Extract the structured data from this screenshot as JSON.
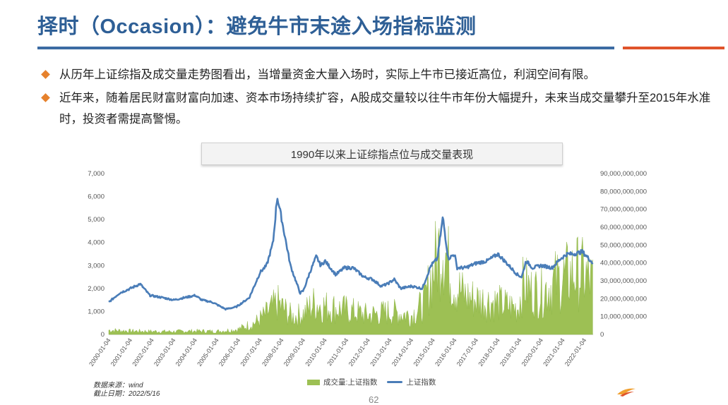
{
  "slide": {
    "title": "择时（Occasion）：避免牛市末途入场指标监测",
    "bullets": [
      "从历年上证综指及成交量走势图看出，当增量资金大量入场时，实际上牛市已接近高位，利润空间有限。",
      "近年来，随着居民财富财富向加速、资本市场持续扩容，A股成交量较以往牛市年份大幅提升，未来当成交量攀升至2015年水准时，投资者需提高警惕。"
    ],
    "source_label": "数据来源：wind",
    "date_label": "截止日期：2022/5/16",
    "page_number": "62"
  },
  "colors": {
    "title": "#2e5f96",
    "rule_blue": "#3c6ba3",
    "rule_orange": "#e0542b",
    "bullet": "#e6812c",
    "volume_fill": "#9dc054",
    "index_line": "#4a7db8"
  },
  "chart_data": {
    "type": "line",
    "title": "1990年以来上证综指点位与成交量表现",
    "legend_placement": "bottom",
    "grid": false,
    "x_tick_labels": [
      "2000-01-04",
      "2001-01-04",
      "2002-01-04",
      "2003-01-04",
      "2004-01-04",
      "2005-01-04",
      "2006-01-04",
      "2007-01-04",
      "2008-01-04",
      "2009-01-04",
      "2010-01-04",
      "2011-01-04",
      "2012-01-04",
      "2013-01-04",
      "2014-01-04",
      "2015-01-04",
      "2016-01-04",
      "2017-01-04",
      "2018-01-04",
      "2019-01-04",
      "2020-01-04",
      "2021-01-04",
      "2022-01-04"
    ],
    "x_range": [
      2000.0,
      2022.4
    ],
    "y_left_ticks": [
      "0",
      "1,000",
      "2,000",
      "3,000",
      "4,000",
      "5,000",
      "6,000",
      "7,000"
    ],
    "y_left_range": [
      0,
      7000
    ],
    "y_right_ticks": [
      "0",
      "10,000,000,000",
      "20,000,000,000",
      "30,000,000,000",
      "40,000,000,000",
      "50,000,000,000",
      "60,000,000,000",
      "70,000,000,000",
      "80,000,000,000",
      "90,000,000,000"
    ],
    "y_right_range": [
      0,
      90000000000
    ],
    "series": [
      {
        "name": "上证指数",
        "kind": "line",
        "axis": "left",
        "x": [
          2000.0,
          2000.5,
          2001.0,
          2001.45,
          2001.9,
          2002.5,
          2003.0,
          2003.5,
          2004.0,
          2004.3,
          2004.8,
          2005.4,
          2005.9,
          2006.5,
          2007.0,
          2007.3,
          2007.6,
          2007.79,
          2007.9,
          2008.1,
          2008.4,
          2008.7,
          2008.85,
          2009.0,
          2009.3,
          2009.6,
          2009.8,
          2010.0,
          2010.5,
          2010.9,
          2011.3,
          2011.8,
          2012.2,
          2012.6,
          2012.9,
          2013.2,
          2013.5,
          2014.0,
          2014.5,
          2014.9,
          2015.2,
          2015.45,
          2015.6,
          2015.7,
          2016.0,
          2016.1,
          2016.5,
          2017.0,
          2017.5,
          2018.0,
          2018.5,
          2018.9,
          2019.1,
          2019.3,
          2019.6,
          2020.0,
          2020.5,
          2020.9,
          2021.2,
          2021.5,
          2021.9,
          2022.0,
          2022.3,
          2022.38
        ],
        "values": [
          1400,
          1800,
          2000,
          2200,
          1700,
          1600,
          1500,
          1600,
          1700,
          1500,
          1400,
          1100,
          1200,
          1600,
          2700,
          3000,
          4000,
          6000,
          5500,
          4500,
          3000,
          2200,
          1800,
          1900,
          2700,
          3400,
          3000,
          3200,
          2600,
          2900,
          2900,
          2500,
          2400,
          2100,
          2200,
          2400,
          2000,
          2100,
          2000,
          3000,
          3300,
          5100,
          4000,
          3300,
          3500,
          2900,
          2900,
          3100,
          3200,
          3500,
          3000,
          2600,
          2500,
          3200,
          2900,
          3000,
          2900,
          3300,
          3500,
          3500,
          3600,
          3500,
          3200,
          3100
        ]
      },
      {
        "name": "成交量:上证指数",
        "kind": "area",
        "axis": "right",
        "x": [
          2000.0,
          2001.0,
          2002.0,
          2003.0,
          2004.0,
          2005.0,
          2006.0,
          2006.8,
          2007.3,
          2007.8,
          2008.5,
          2009.0,
          2009.5,
          2010.0,
          2011.0,
          2012.0,
          2013.0,
          2014.0,
          2014.6,
          2014.95,
          2015.2,
          2015.45,
          2015.7,
          2016.0,
          2016.5,
          2017.0,
          2018.0,
          2018.9,
          2019.2,
          2019.5,
          2020.0,
          2020.6,
          2021.0,
          2021.6,
          2022.0,
          2022.38
        ],
        "values": [
          2500000000,
          2000000000,
          1800000000,
          1700000000,
          2000000000,
          1800000000,
          3000000000,
          7000000000,
          12000000000,
          18000000000,
          10000000000,
          12000000000,
          18000000000,
          16000000000,
          14000000000,
          11000000000,
          13000000000,
          11000000000,
          18000000000,
          35000000000,
          45000000000,
          55000000000,
          40000000000,
          28000000000,
          22000000000,
          20000000000,
          18000000000,
          15000000000,
          30000000000,
          25000000000,
          24000000000,
          30000000000,
          32000000000,
          36000000000,
          34000000000,
          30000000000
        ]
      }
    ]
  }
}
